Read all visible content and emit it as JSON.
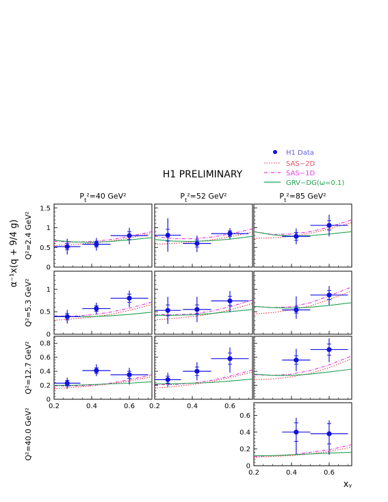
{
  "figure": {
    "title": "H1 PRELIMINARY",
    "ylabel": "α⁻¹x(q + 9/4 g)",
    "xlabel": "xᵧ",
    "colors": {
      "data": "#1010e0",
      "sas2d": "#e0303a",
      "sas1d": "#e030d0",
      "grv": "#20a050",
      "frame": "#000000"
    }
  },
  "legend": {
    "items": [
      {
        "label": "H1 Data",
        "color": "#6060e0",
        "style": "marker"
      },
      {
        "label": "SAS−2D",
        "color": "#e05060",
        "style": "dotted"
      },
      {
        "label": "SAS−1D",
        "color": "#e040e0",
        "style": "dashdot"
      },
      {
        "label": "GRV−DG(ω=0.1)",
        "color": "#20a050",
        "style": "solid"
      }
    ]
  },
  "columns": [
    {
      "label_pre": "P",
      "label_sub": "t",
      "label_post": "²=40 GeV²"
    },
    {
      "label_pre": "P",
      "label_sub": "t",
      "label_post": "²=52 GeV²"
    },
    {
      "label_pre": "P",
      "label_sub": "t",
      "label_post": "²=85 GeV²"
    }
  ],
  "rows": [
    {
      "label": "Q²=2.4 GeV²",
      "ylim": [
        0,
        1.6
      ],
      "yticks": [
        0,
        0.5,
        1,
        1.5
      ],
      "yticklabels": [
        "0",
        "0.5",
        "1",
        "1.5"
      ]
    },
    {
      "label": "Q²=5.3 GeV²",
      "ylim": [
        0,
        1.4
      ],
      "yticks": [
        0,
        0.5,
        1
      ],
      "yticklabels": [
        "0",
        "0.5",
        "1"
      ]
    },
    {
      "label": "Q²=12.7 GeV²",
      "ylim": [
        0,
        0.9
      ],
      "yticks": [
        0,
        0.2,
        0.4,
        0.6,
        0.8
      ],
      "yticklabels": [
        "0",
        "0.2",
        "0.4",
        "0.6",
        "0.8"
      ]
    },
    {
      "label": "Q²=40.0 GeV²",
      "ylim": [
        0,
        0.75
      ],
      "yticks": [
        0,
        0.2,
        0.4,
        0.6
      ],
      "yticklabels": [
        "0",
        "0.2",
        "0.4",
        "0.6"
      ]
    }
  ],
  "x_axis": {
    "xlim": [
      0.2,
      0.72
    ],
    "xticks": [
      0.2,
      0.4,
      0.6
    ],
    "xticklabels": [
      "0.2",
      "0.4",
      "0.6"
    ]
  },
  "chart_data": {
    "type": "scatter",
    "title": "H1 PRELIMINARY",
    "xlabel": "xᵧ",
    "ylabel": "α⁻¹x(q + 9/4 g)",
    "series": [
      {
        "name": "H1 Data"
      },
      {
        "name": "SAS−2D"
      },
      {
        "name": "SAS−1D"
      },
      {
        "name": "GRV−DG(ω=0.1)"
      }
    ],
    "panels": [
      {
        "row": 0,
        "col": 0,
        "data": [
          {
            "x": 0.27,
            "xerr": 0.07,
            "y": 0.52,
            "yerr_lo": 0.2,
            "yerr_hi": 0.2,
            "ystat_lo": 0.08,
            "ystat_hi": 0.08
          },
          {
            "x": 0.425,
            "xerr": 0.075,
            "y": 0.58,
            "yerr_lo": 0.16,
            "yerr_hi": 0.16,
            "ystat_lo": 0.07,
            "ystat_hi": 0.07
          },
          {
            "x": 0.6,
            "xerr": 0.1,
            "y": 0.8,
            "yerr_lo": 0.22,
            "yerr_hi": 0.2,
            "ystat_lo": 0.1,
            "ystat_hi": 0.1
          }
        ],
        "curves": {
          "x": [
            0.2,
            0.3,
            0.4,
            0.5,
            0.6,
            0.72
          ],
          "sas2d": [
            0.55,
            0.57,
            0.61,
            0.66,
            0.74,
            0.86
          ],
          "sas1d": [
            0.66,
            0.63,
            0.65,
            0.7,
            0.78,
            0.9
          ],
          "grv": [
            0.68,
            0.64,
            0.63,
            0.65,
            0.69,
            0.75
          ]
        }
      },
      {
        "row": 0,
        "col": 1,
        "data": [
          {
            "x": 0.27,
            "xerr": 0.07,
            "y": 0.81,
            "yerr_lo": 0.42,
            "yerr_hi": 0.43,
            "ystat_lo": 0.15,
            "ystat_hi": 0.15
          },
          {
            "x": 0.425,
            "xerr": 0.075,
            "y": 0.6,
            "yerr_lo": 0.22,
            "yerr_hi": 0.2,
            "ystat_lo": 0.09,
            "ystat_hi": 0.09
          },
          {
            "x": 0.6,
            "xerr": 0.1,
            "y": 0.85,
            "yerr_lo": 0.14,
            "yerr_hi": 0.14,
            "ystat_lo": 0.07,
            "ystat_hi": 0.07
          }
        ],
        "curves": {
          "x": [
            0.2,
            0.3,
            0.4,
            0.5,
            0.6,
            0.72
          ],
          "sas2d": [
            0.58,
            0.6,
            0.64,
            0.69,
            0.77,
            0.89
          ],
          "sas1d": [
            0.78,
            0.72,
            0.72,
            0.76,
            0.84,
            0.97
          ],
          "grv": [
            0.7,
            0.66,
            0.65,
            0.67,
            0.71,
            0.78
          ]
        }
      },
      {
        "row": 0,
        "col": 2,
        "data": [
          {
            "x": 0.425,
            "xerr": 0.075,
            "y": 0.78,
            "yerr_lo": 0.2,
            "yerr_hi": 0.2,
            "ystat_lo": 0.1,
            "ystat_hi": 0.1
          },
          {
            "x": 0.6,
            "xerr": 0.1,
            "y": 1.06,
            "yerr_lo": 0.28,
            "yerr_hi": 0.27,
            "ystat_lo": 0.12,
            "ystat_hi": 0.12
          }
        ],
        "curves": {
          "x": [
            0.2,
            0.3,
            0.4,
            0.5,
            0.6,
            0.72
          ],
          "sas2d": [
            0.73,
            0.74,
            0.78,
            0.86,
            0.97,
            1.13
          ],
          "sas1d": [
            0.9,
            0.83,
            0.84,
            0.9,
            1.02,
            1.2
          ],
          "grv": [
            0.9,
            0.82,
            0.79,
            0.8,
            0.84,
            0.9
          ]
        }
      },
      {
        "row": 1,
        "col": 0,
        "data": [
          {
            "x": 0.27,
            "xerr": 0.07,
            "y": 0.39,
            "yerr_lo": 0.15,
            "yerr_hi": 0.15,
            "ystat_lo": 0.07,
            "ystat_hi": 0.07
          },
          {
            "x": 0.425,
            "xerr": 0.075,
            "y": 0.57,
            "yerr_lo": 0.12,
            "yerr_hi": 0.13,
            "ystat_lo": 0.06,
            "ystat_hi": 0.06
          },
          {
            "x": 0.6,
            "xerr": 0.1,
            "y": 0.8,
            "yerr_lo": 0.2,
            "yerr_hi": 0.17,
            "ystat_lo": 0.09,
            "ystat_hi": 0.09
          }
        ],
        "curves": {
          "x": [
            0.2,
            0.3,
            0.4,
            0.5,
            0.6,
            0.72
          ],
          "sas2d": [
            0.31,
            0.34,
            0.38,
            0.44,
            0.53,
            0.66
          ],
          "sas1d": [
            0.41,
            0.4,
            0.43,
            0.49,
            0.58,
            0.71
          ],
          "grv": [
            0.4,
            0.39,
            0.39,
            0.41,
            0.44,
            0.49
          ]
        }
      },
      {
        "row": 1,
        "col": 1,
        "data": [
          {
            "x": 0.27,
            "xerr": 0.07,
            "y": 0.53,
            "yerr_lo": 0.3,
            "yerr_hi": 0.3,
            "ystat_lo": 0.12,
            "ystat_hi": 0.12
          },
          {
            "x": 0.425,
            "xerr": 0.075,
            "y": 0.55,
            "yerr_lo": 0.28,
            "yerr_hi": 0.28,
            "ystat_lo": 0.1,
            "ystat_hi": 0.1
          },
          {
            "x": 0.6,
            "xerr": 0.1,
            "y": 0.74,
            "yerr_lo": 0.25,
            "yerr_hi": 0.22,
            "ystat_lo": 0.1,
            "ystat_hi": 0.1
          }
        ],
        "curves": {
          "x": [
            0.2,
            0.3,
            0.4,
            0.5,
            0.6,
            0.72
          ],
          "sas2d": [
            0.32,
            0.35,
            0.39,
            0.45,
            0.54,
            0.68
          ],
          "sas1d": [
            0.44,
            0.43,
            0.45,
            0.51,
            0.61,
            0.76
          ],
          "grv": [
            0.42,
            0.42,
            0.43,
            0.46,
            0.5,
            0.55
          ]
        }
      },
      {
        "row": 1,
        "col": 2,
        "data": [
          {
            "x": 0.425,
            "xerr": 0.075,
            "y": 0.54,
            "yerr_lo": 0.2,
            "yerr_hi": 0.3,
            "ystat_lo": 0.07,
            "ystat_hi": 0.07
          },
          {
            "x": 0.6,
            "xerr": 0.1,
            "y": 0.87,
            "yerr_lo": 0.22,
            "yerr_hi": 0.2,
            "ystat_lo": 0.1,
            "ystat_hi": 0.1
          }
        ],
        "curves": {
          "x": [
            0.2,
            0.3,
            0.4,
            0.5,
            0.6,
            0.72
          ],
          "sas2d": [
            0.45,
            0.48,
            0.54,
            0.63,
            0.77,
            0.96
          ],
          "sas1d": [
            0.62,
            0.59,
            0.61,
            0.7,
            0.85,
            1.05
          ],
          "grv": [
            0.62,
            0.59,
            0.58,
            0.6,
            0.64,
            0.7
          ]
        }
      },
      {
        "row": 2,
        "col": 0,
        "data": [
          {
            "x": 0.27,
            "xerr": 0.07,
            "y": 0.23,
            "yerr_lo": 0.08,
            "yerr_hi": 0.08,
            "ystat_lo": 0.04,
            "ystat_hi": 0.04
          },
          {
            "x": 0.425,
            "xerr": 0.075,
            "y": 0.41,
            "yerr_lo": 0.08,
            "yerr_hi": 0.09,
            "ystat_lo": 0.04,
            "ystat_hi": 0.04
          },
          {
            "x": 0.6,
            "xerr": 0.1,
            "y": 0.35,
            "yerr_lo": 0.14,
            "yerr_hi": 0.1,
            "ystat_lo": 0.05,
            "ystat_hi": 0.05
          }
        ],
        "curves": {
          "x": [
            0.2,
            0.3,
            0.4,
            0.5,
            0.6,
            0.72
          ],
          "sas2d": [
            0.15,
            0.17,
            0.19,
            0.22,
            0.26,
            0.32
          ],
          "sas1d": [
            0.19,
            0.19,
            0.2,
            0.23,
            0.28,
            0.35
          ],
          "grv": [
            0.2,
            0.2,
            0.21,
            0.22,
            0.23,
            0.25
          ]
        }
      },
      {
        "row": 2,
        "col": 1,
        "data": [
          {
            "x": 0.27,
            "xerr": 0.07,
            "y": 0.28,
            "yerr_lo": 0.1,
            "yerr_hi": 0.1,
            "ystat_lo": 0.05,
            "ystat_hi": 0.05
          },
          {
            "x": 0.425,
            "xerr": 0.075,
            "y": 0.4,
            "yerr_lo": 0.13,
            "yerr_hi": 0.13,
            "ystat_lo": 0.06,
            "ystat_hi": 0.06
          },
          {
            "x": 0.6,
            "xerr": 0.1,
            "y": 0.58,
            "yerr_lo": 0.2,
            "yerr_hi": 0.16,
            "ystat_lo": 0.08,
            "ystat_hi": 0.08
          }
        ],
        "curves": {
          "x": [
            0.2,
            0.3,
            0.4,
            0.5,
            0.6,
            0.72
          ],
          "sas2d": [
            0.16,
            0.18,
            0.21,
            0.25,
            0.31,
            0.39
          ],
          "sas1d": [
            0.21,
            0.21,
            0.23,
            0.27,
            0.33,
            0.42
          ],
          "grv": [
            0.22,
            0.22,
            0.23,
            0.24,
            0.26,
            0.29
          ]
        }
      },
      {
        "row": 2,
        "col": 2,
        "data": [
          {
            "x": 0.425,
            "xerr": 0.075,
            "y": 0.56,
            "yerr_lo": 0.16,
            "yerr_hi": 0.16,
            "ystat_lo": 0.06,
            "ystat_hi": 0.06
          },
          {
            "x": 0.6,
            "xerr": 0.1,
            "y": 0.71,
            "yerr_lo": 0.18,
            "yerr_hi": 0.16,
            "ystat_lo": 0.08,
            "ystat_hi": 0.08
          }
        ],
        "curves": {
          "x": [
            0.2,
            0.3,
            0.4,
            0.5,
            0.6,
            0.72
          ],
          "sas2d": [
            0.28,
            0.29,
            0.32,
            0.37,
            0.45,
            0.58
          ],
          "sas1d": [
            0.35,
            0.34,
            0.36,
            0.41,
            0.49,
            0.62
          ],
          "grv": [
            0.36,
            0.34,
            0.34,
            0.36,
            0.39,
            0.43
          ]
        }
      },
      {
        "row": 3,
        "col": 2,
        "data": [
          {
            "x": 0.425,
            "xerr": 0.075,
            "y": 0.4,
            "yerr_lo": 0.26,
            "yerr_hi": 0.17,
            "ystat_lo": 0.11,
            "ystat_hi": 0.11
          },
          {
            "x": 0.6,
            "xerr": 0.1,
            "y": 0.38,
            "yerr_lo": 0.25,
            "yerr_hi": 0.16,
            "ystat_lo": 0.12,
            "ystat_hi": 0.12
          }
        ],
        "curves": {
          "x": [
            0.2,
            0.3,
            0.4,
            0.5,
            0.6,
            0.72
          ],
          "sas2d": [
            0.1,
            0.11,
            0.12,
            0.14,
            0.17,
            0.22
          ],
          "sas1d": [
            0.11,
            0.12,
            0.13,
            0.16,
            0.19,
            0.25
          ],
          "grv": [
            0.12,
            0.12,
            0.13,
            0.14,
            0.15,
            0.16
          ]
        }
      }
    ]
  }
}
